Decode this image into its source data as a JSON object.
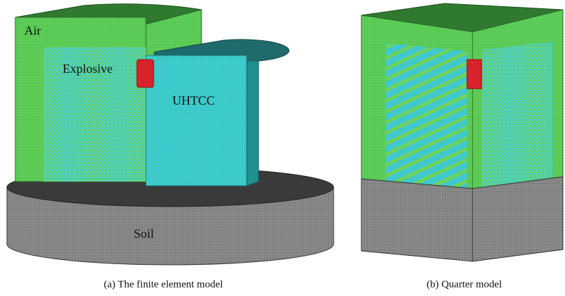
{
  "panels": [
    {
      "labels": [
        "Air",
        "Explosive",
        "UHTCC",
        "Soil"
      ],
      "caption": "(a) The finite element model"
    },
    {
      "caption": "(b) Quarter model"
    }
  ]
}
